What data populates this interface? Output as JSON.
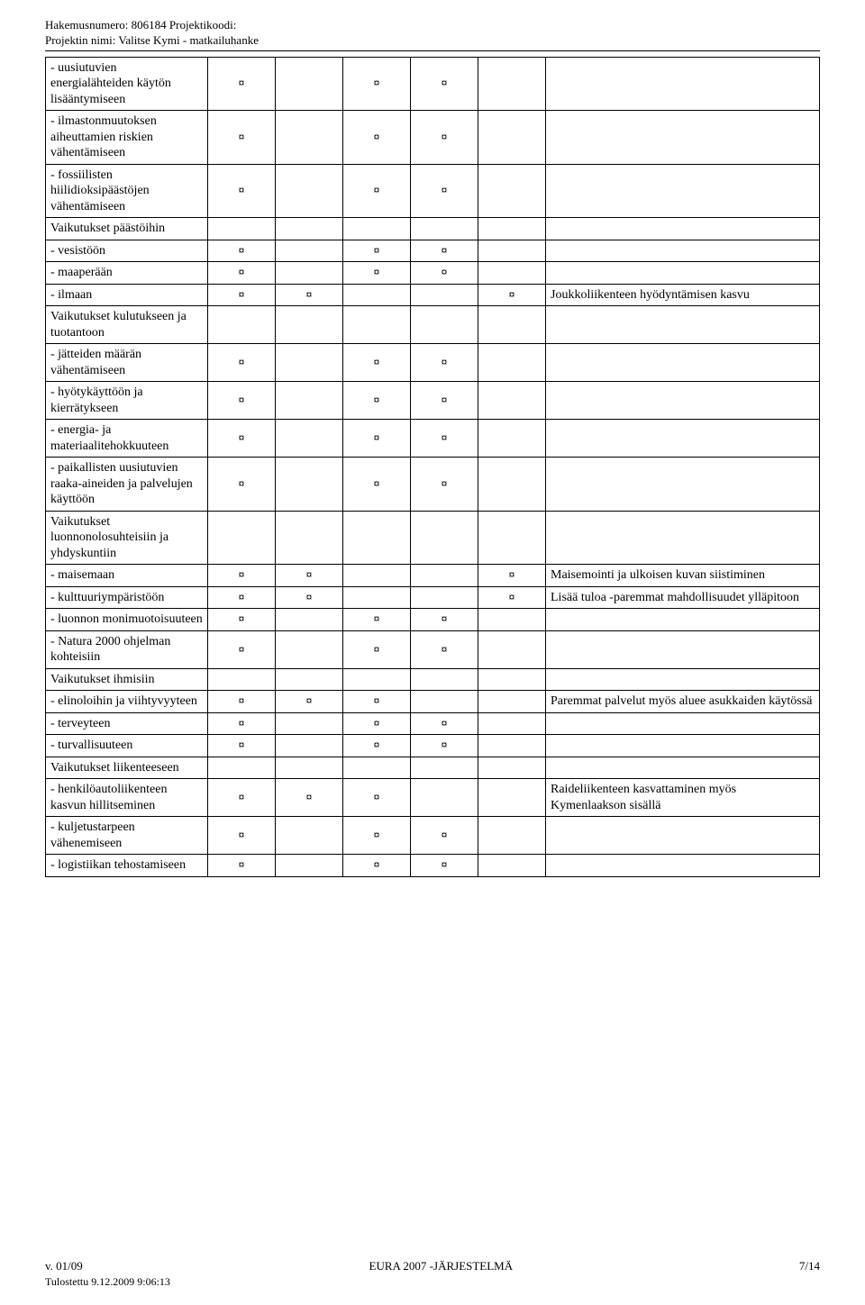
{
  "header": {
    "line1": "Hakemusnumero: 806184  Projektikoodi:",
    "line2": "Projektin nimi: Valitse Kymi - matkailuhanke"
  },
  "mark": "¤",
  "cols": {
    "label_w": 180,
    "mark_w": 75
  },
  "rows": [
    {
      "label": "- uusiutuvien energialähteiden käytön lisääntymiseen",
      "marks": [
        true,
        false,
        true,
        true,
        false
      ],
      "comment": "",
      "section": false
    },
    {
      "label": "- ilmastonmuutoksen aiheuttamien riskien vähentämiseen",
      "marks": [
        true,
        false,
        true,
        true,
        false
      ],
      "comment": "",
      "section": false
    },
    {
      "label": "- fossiilisten hiilidioksipäästöjen vähentämiseen",
      "marks": [
        true,
        false,
        true,
        true,
        false
      ],
      "comment": "",
      "section": false
    },
    {
      "label": "Vaikutukset päästöihin",
      "marks": [
        false,
        false,
        false,
        false,
        false
      ],
      "comment": "",
      "section": true
    },
    {
      "label": "- vesistöön",
      "marks": [
        true,
        false,
        true,
        true,
        false
      ],
      "comment": "",
      "section": false
    },
    {
      "label": "- maaperään",
      "marks": [
        true,
        false,
        true,
        true,
        false
      ],
      "comment": "",
      "section": false
    },
    {
      "label": "- ilmaan",
      "marks": [
        true,
        true,
        false,
        false,
        true
      ],
      "comment": "Joukkoliikenteen hyödyntämisen kasvu",
      "section": false
    },
    {
      "label": "Vaikutukset kulutukseen ja tuotantoon",
      "marks": [
        false,
        false,
        false,
        false,
        false
      ],
      "comment": "",
      "section": true
    },
    {
      "label": "- jätteiden määrän vähentämiseen",
      "marks": [
        true,
        false,
        true,
        true,
        false
      ],
      "comment": "",
      "section": false
    },
    {
      "label": "- hyötykäyttöön ja kierrätykseen",
      "marks": [
        true,
        false,
        true,
        true,
        false
      ],
      "comment": "",
      "section": false
    },
    {
      "label": "- energia- ja materiaalitehokkuuteen",
      "marks": [
        true,
        false,
        true,
        true,
        false
      ],
      "comment": "",
      "section": false
    },
    {
      "label": "- paikallisten uusiutuvien raaka-aineiden ja palvelujen käyttöön",
      "marks": [
        true,
        false,
        true,
        true,
        false
      ],
      "comment": "",
      "section": false
    },
    {
      "label": "Vaikutukset luonnonolosuhteisiin ja yhdyskuntiin",
      "marks": [
        false,
        false,
        false,
        false,
        false
      ],
      "comment": "",
      "section": true
    },
    {
      "label": "- maisemaan",
      "marks": [
        true,
        true,
        false,
        false,
        true
      ],
      "comment": "Maisemointi ja ulkoisen kuvan siistiminen",
      "section": false
    },
    {
      "label": "- kulttuuriympäristöön",
      "marks": [
        true,
        true,
        false,
        false,
        true
      ],
      "comment": "Lisää tuloa -paremmat mahdollisuudet ylläpitoon",
      "section": false
    },
    {
      "label": "- luonnon monimuotoisuuteen",
      "marks": [
        true,
        false,
        true,
        true,
        false
      ],
      "comment": "",
      "section": false
    },
    {
      "label": "- Natura 2000 ohjelman kohteisiin",
      "marks": [
        true,
        false,
        true,
        true,
        false
      ],
      "comment": "",
      "section": false
    },
    {
      "label": "Vaikutukset ihmisiin",
      "marks": [
        false,
        false,
        false,
        false,
        false
      ],
      "comment": "",
      "section": true
    },
    {
      "label": "- elinoloihin ja viihtyvyyteen",
      "marks": [
        true,
        true,
        true,
        false,
        false
      ],
      "comment": "Paremmat palvelut myös aluee asukkaiden käytössä",
      "section": false
    },
    {
      "label": "- terveyteen",
      "marks": [
        true,
        false,
        true,
        true,
        false
      ],
      "comment": "",
      "section": false
    },
    {
      "label": "- turvallisuuteen",
      "marks": [
        true,
        false,
        true,
        true,
        false
      ],
      "comment": "",
      "section": false
    },
    {
      "label": "Vaikutukset liikenteeseen",
      "marks": [
        false,
        false,
        false,
        false,
        false
      ],
      "comment": "",
      "section": true
    },
    {
      "label": "- henkilöautoliikenteen kasvun hillitseminen",
      "marks": [
        true,
        true,
        true,
        false,
        false
      ],
      "comment": "Raideliikenteen kasvattaminen myös Kymenlaakson sisällä",
      "section": false
    },
    {
      "label": "- kuljetustarpeen vähenemiseen",
      "marks": [
        true,
        false,
        true,
        true,
        false
      ],
      "comment": "",
      "section": false
    },
    {
      "label": "- logistiikan tehostamiseen",
      "marks": [
        true,
        false,
        true,
        true,
        false
      ],
      "comment": "",
      "section": false
    }
  ],
  "footer": {
    "left": "v. 01/09",
    "center": "EURA 2007 -JÄRJESTELMÄ",
    "right": "7/14",
    "timestamp": "Tulostettu 9.12.2009 9:06:13"
  }
}
